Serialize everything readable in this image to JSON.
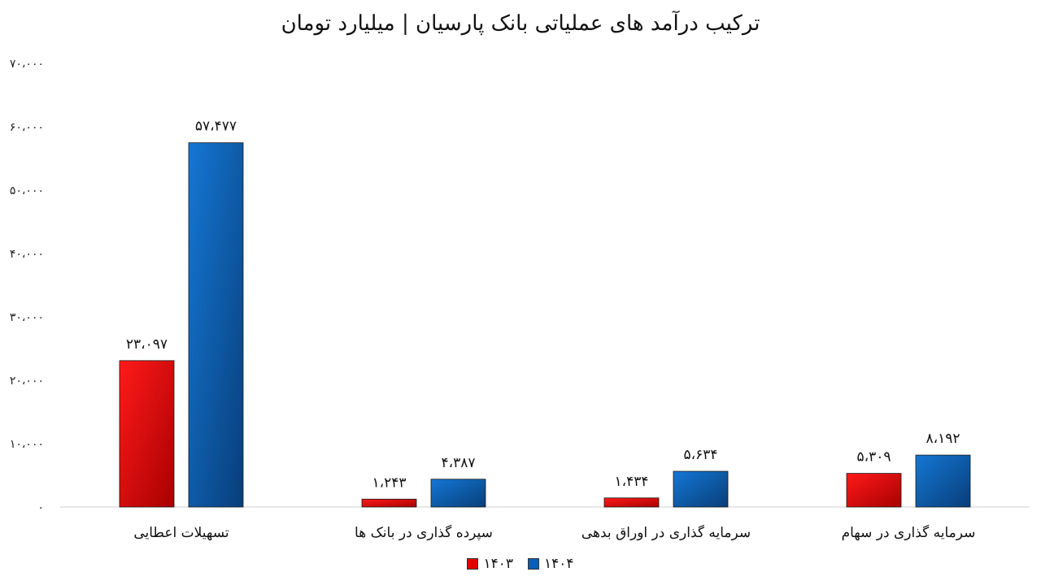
{
  "chart_data": {
    "type": "bar",
    "title": "ترکیب درآمد های عملیاتی بانک پارسیان | میلیارد تومان",
    "categories": [
      "تسهیلات اعطایی",
      "سپرده گذاری در بانک ها",
      "سرمایه گذاری در اوراق بدهی",
      "سرمایه گذاری در سهام"
    ],
    "series": [
      {
        "name": "۱۴۰۳",
        "color": "#e00000",
        "values": [
          23097,
          1243,
          1434,
          5309
        ],
        "labels": [
          "۲۳،۰۹۷",
          "۱،۲۴۳",
          "۱،۴۳۴",
          "۵،۳۰۹"
        ]
      },
      {
        "name": "۱۴۰۴",
        "color": "#0a5fb4",
        "values": [
          57477,
          4387,
          5634,
          8192
        ],
        "labels": [
          "۵۷،۴۷۷",
          "۴،۳۸۷",
          "۵،۶۳۴",
          "۸،۱۹۲"
        ]
      }
    ],
    "ylim": [
      0,
      70000
    ],
    "yticks": [
      0,
      10000,
      20000,
      30000,
      40000,
      50000,
      60000,
      70000
    ],
    "ytick_labels": [
      "۰",
      "۱۰،۰۰۰",
      "۲۰،۰۰۰",
      "۳۰،۰۰۰",
      "۴۰،۰۰۰",
      "۵۰،۰۰۰",
      "۶۰،۰۰۰",
      "۷۰،۰۰۰"
    ],
    "grid": false,
    "legend": "bottom"
  }
}
